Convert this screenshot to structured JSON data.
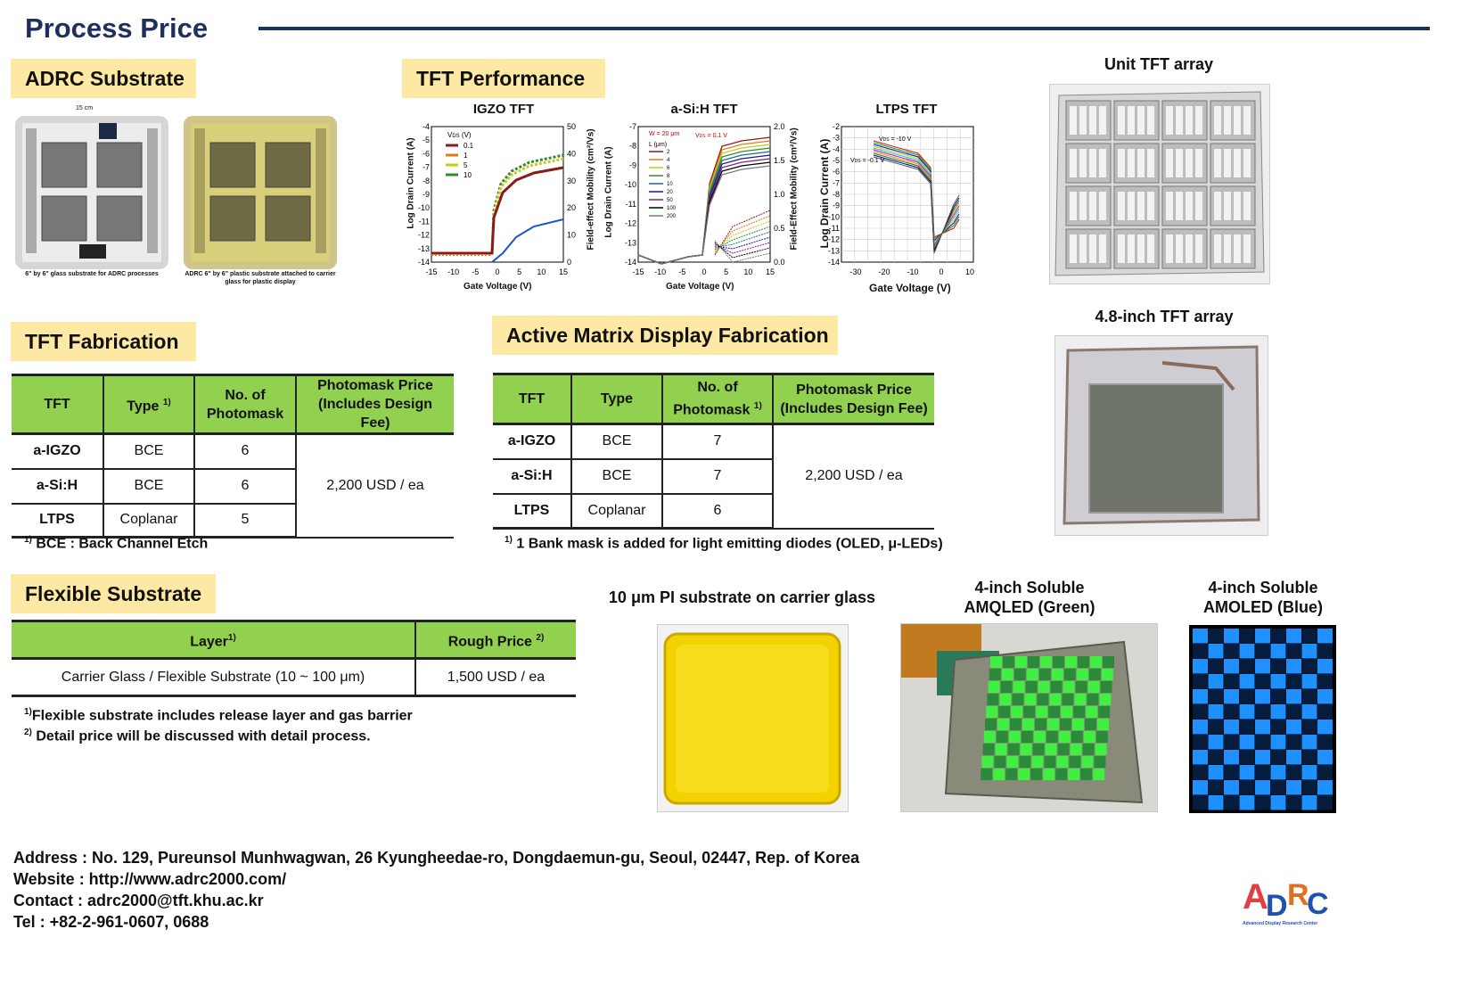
{
  "page": {
    "title": "Process Price"
  },
  "adrc_substrate": {
    "heading": "ADRC Substrate",
    "left_caption": "6\" by 6\" glass substrate for ADRC processes",
    "right_caption": "ADRC 6\" by 6\" plastic substrate attached to carrier glass for plastic display",
    "dim_label": "15 cm"
  },
  "tft_performance": {
    "heading": "TFT Performance",
    "plots": [
      {
        "title": "IGZO TFT",
        "xlabel": "Gate Voltage (V)",
        "ylabel": "Log Drain Current (A)",
        "y2label": "Field-effect Mobility (cm²/Vs)",
        "xticks": [
          "-15",
          "-10",
          "-5",
          "0",
          "5",
          "10",
          "15"
        ],
        "yticks": [
          "-4",
          "-5",
          "-6",
          "-7",
          "-8",
          "-9",
          "-10",
          "-11",
          "-12",
          "-13",
          "-14"
        ],
        "y2ticks": [
          "50",
          "40",
          "30",
          "20",
          "10",
          "0"
        ],
        "legend_title": "V_DS (V)",
        "legend": [
          "0.1",
          "1",
          "5",
          "10"
        ],
        "legend_colors": [
          "#8b1a1a",
          "#e07b1a",
          "#c9c91a",
          "#2e8b2e"
        ]
      },
      {
        "title": "a-Si:H TFT",
        "xlabel": "Gate Voltage (V)",
        "ylabel": "Log Drain Current (A)",
        "y2label": "Field-Effect Mobility (cm²/Vs)",
        "xticks": [
          "-15",
          "-10",
          "-5",
          "0",
          "5",
          "10",
          "15"
        ],
        "yticks": [
          "-7",
          "-8",
          "-9",
          "-10",
          "-11",
          "-12",
          "-13",
          "-14"
        ],
        "y2ticks": [
          "2.0",
          "1.5",
          "1.0",
          "0.5",
          "0.0"
        ],
        "annot1": "W = 20 μm",
        "annot2": "V_DS = 0.1 V",
        "legend_title": "L (μm)",
        "legend": [
          "2",
          "4",
          "6",
          "8",
          "10",
          "20",
          "50",
          "100",
          "200"
        ],
        "legend_colors": [
          "#8b1a1a",
          "#e07b1a",
          "#c9c91a",
          "#2e8b2e",
          "#1a6e8b",
          "#1a1a8b",
          "#8b1a8b",
          "#000000",
          "#777777"
        ]
      },
      {
        "title": "LTPS TFT",
        "xlabel": "Gate Voltage (V)",
        "ylabel": "Log Drain Current (A)",
        "xticks": [
          "-30",
          "-20",
          "-10",
          "0",
          "10"
        ],
        "yticks": [
          "-2",
          "-3",
          "-4",
          "-5",
          "-6",
          "-7",
          "-8",
          "-9",
          "-10",
          "-11",
          "-12",
          "-13",
          "-14"
        ],
        "annot1": "V_DS = -10 V",
        "annot2": "V_DS = -0.1 V"
      }
    ]
  },
  "unit_tft": {
    "caption": "Unit TFT array"
  },
  "tft_48": {
    "caption": "4.8-inch TFT array"
  },
  "tft_fabrication": {
    "heading": "TFT Fabrication",
    "headers": [
      "TFT",
      "Type",
      "No. of",
      "Photomask",
      "Photomask Price",
      "(Includes Design Fee)"
    ],
    "type_sup": "1)",
    "rows": [
      {
        "tft": "a-IGZO",
        "type": "BCE",
        "masks": "6"
      },
      {
        "tft": "a-Si:H",
        "type": "BCE",
        "masks": "6"
      },
      {
        "tft": "LTPS",
        "type": "Coplanar",
        "masks": "5"
      }
    ],
    "price": "2,200 USD / ea",
    "note_sup": "1)",
    "note": "BCE : Back Channel Etch"
  },
  "am_fabrication": {
    "heading": "Active Matrix Display Fabrication",
    "headers": [
      "TFT",
      "Type",
      "No. of",
      "Photomask",
      "Photomask Price",
      "(Includes Design Fee)"
    ],
    "mask_sup": "1)",
    "rows": [
      {
        "tft": "a-IGZO",
        "type": "BCE",
        "masks": "7"
      },
      {
        "tft": "a-Si:H",
        "type": "BCE",
        "masks": "7"
      },
      {
        "tft": "LTPS",
        "type": "Coplanar",
        "masks": "6"
      }
    ],
    "price": "2,200 USD / ea",
    "note_sup": "1)",
    "note": "1 Bank mask is added for light emitting diodes (OLED, μ-LEDs)"
  },
  "flexible": {
    "heading": "Flexible Substrate",
    "headers": [
      "Layer",
      "Rough Price"
    ],
    "sups": [
      "1)",
      "2)"
    ],
    "row": {
      "layer": "Carrier Glass / Flexible Substrate (10 ~ 100 μm)",
      "price": "1,500 USD / ea"
    },
    "notes": [
      {
        "sup": "1)",
        "text": "Flexible substrate includes release layer and gas barrier"
      },
      {
        "sup": "2)",
        "text": "Detail price will be discussed with detail process."
      }
    ]
  },
  "photos": {
    "pi": "10 μm PI substrate on carrier glass",
    "green_l1": "4-inch Soluble",
    "green_l2": "AMQLED (Green)",
    "blue_l1": "4-inch Soluble",
    "blue_l2": "AMOLED (Blue)"
  },
  "footer": {
    "address": "Address : No. 129, Pureunsol Munhwagwan, 26 Kyungheedae-ro, Dongdaemun-gu, Seoul, 02447, Rep. of Korea",
    "website": "Website : http://www.adrc2000.com/",
    "contact": "Contact : adrc2000@tft.khu.ac.kr",
    "tel": "Tel : +82-2-961-0607, 0688"
  },
  "logo": {
    "text": "ADRC",
    "subtext": "Advanced Display Research Center"
  },
  "colors": {
    "navy": "#1f2f5e",
    "section_bg": "#fde9a3",
    "table_header": "#92d050"
  }
}
